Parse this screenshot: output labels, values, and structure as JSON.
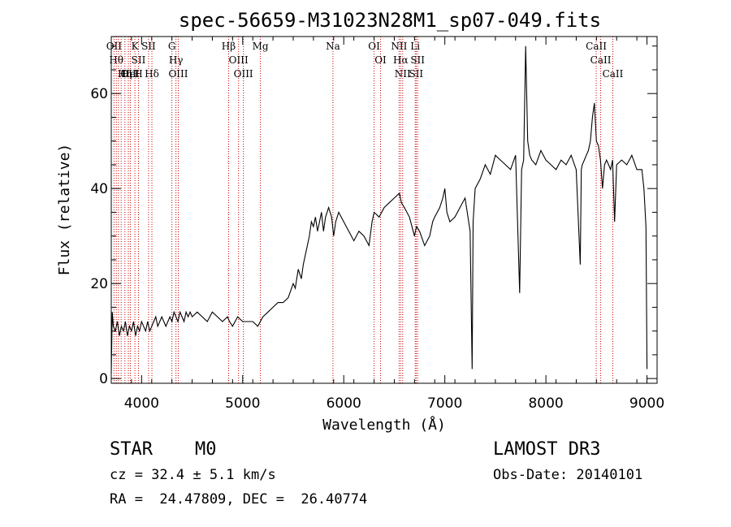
{
  "chart_data": {
    "type": "line",
    "title": "spec-56659-M31023N28M1_sp07-049.fits",
    "xlabel": "Wavelength (Å)",
    "ylabel": "Flux (relative)",
    "xlim": [
      3700,
      9100
    ],
    "ylim": [
      -1,
      72
    ],
    "xticks": [
      4000,
      5000,
      6000,
      7000,
      8000,
      9000
    ],
    "yticks": [
      0,
      20,
      40,
      60
    ],
    "series": [
      {
        "name": "flux",
        "x": [
          3700,
          3710,
          3720,
          3740,
          3760,
          3780,
          3800,
          3820,
          3840,
          3860,
          3880,
          3900,
          3920,
          3940,
          3960,
          3980,
          4000,
          4020,
          4040,
          4060,
          4080,
          4100,
          4120,
          4140,
          4160,
          4180,
          4200,
          4220,
          4240,
          4260,
          4280,
          4300,
          4320,
          4340,
          4360,
          4380,
          4400,
          4420,
          4440,
          4460,
          4480,
          4500,
          4550,
          4600,
          4650,
          4700,
          4750,
          4800,
          4850,
          4870,
          4900,
          4950,
          5000,
          5050,
          5100,
          5150,
          5200,
          5250,
          5300,
          5350,
          5400,
          5450,
          5500,
          5520,
          5550,
          5580,
          5600,
          5620,
          5640,
          5660,
          5680,
          5700,
          5720,
          5740,
          5760,
          5780,
          5800,
          5820,
          5850,
          5880,
          5900,
          5920,
          5950,
          6000,
          6050,
          6100,
          6150,
          6200,
          6250,
          6280,
          6300,
          6350,
          6400,
          6450,
          6500,
          6550,
          6570,
          6600,
          6650,
          6700,
          6720,
          6750,
          6800,
          6850,
          6880,
          6900,
          6950,
          6980,
          7000,
          7020,
          7050,
          7100,
          7150,
          7200,
          7250,
          7270,
          7280,
          7300,
          7350,
          7400,
          7450,
          7500,
          7550,
          7600,
          7650,
          7700,
          7740,
          7760,
          7780,
          7800,
          7820,
          7840,
          7860,
          7900,
          7950,
          8000,
          8050,
          8100,
          8150,
          8200,
          8250,
          8300,
          8340,
          8350,
          8360,
          8380,
          8400,
          8420,
          8440,
          8460,
          8480,
          8500,
          8520,
          8540,
          8560,
          8580,
          8600,
          8620,
          8640,
          8660,
          8680,
          8700,
          8750,
          8800,
          8850,
          8900,
          8950,
          8970,
          8990,
          9000
        ],
        "values": [
          1,
          14,
          11,
          10,
          12,
          9,
          11,
          10,
          12,
          9,
          11,
          10,
          12,
          9,
          11,
          10,
          12,
          11,
          10,
          12,
          10,
          11,
          12,
          13,
          11,
          12,
          13,
          12,
          11,
          12,
          13,
          12,
          14,
          13,
          12,
          14,
          13,
          12,
          14,
          13,
          14,
          13,
          14,
          13,
          12,
          14,
          13,
          12,
          13,
          12,
          11,
          13,
          12,
          12,
          12,
          11,
          13,
          14,
          15,
          16,
          16,
          17,
          20,
          19,
          23,
          21,
          24,
          26,
          28,
          30,
          33,
          32,
          34,
          31,
          33,
          35,
          31,
          34,
          36,
          34,
          30,
          33,
          35,
          33,
          31,
          29,
          31,
          30,
          28,
          33,
          35,
          34,
          36,
          37,
          38,
          39,
          37,
          36,
          34,
          30,
          32,
          31,
          28,
          30,
          33,
          34,
          36,
          38,
          40,
          35,
          33,
          34,
          36,
          38,
          31,
          2,
          33,
          40,
          42,
          45,
          43,
          47,
          46,
          45,
          44,
          47,
          18,
          44,
          46,
          70,
          50,
          47,
          46,
          45,
          48,
          46,
          45,
          44,
          46,
          45,
          47,
          44,
          24,
          44,
          45,
          46,
          47,
          48,
          50,
          55,
          58,
          50,
          49,
          46,
          40,
          45,
          46,
          45,
          44,
          46,
          33,
          45,
          46,
          45,
          47,
          44,
          44,
          40,
          32,
          2
        ]
      }
    ],
    "lines": [
      {
        "wl": 3727,
        "labels": [
          "OII"
        ]
      },
      {
        "wl": 3750,
        "labels": [
          "Hθ"
        ]
      },
      {
        "wl": 3771,
        "labels": [
          ""
        ]
      },
      {
        "wl": 3798,
        "labels": [
          ""
        ]
      },
      {
        "wl": 3835,
        "labels": [
          "Hη"
        ]
      },
      {
        "wl": 3869,
        "labels": [
          "OII"
        ]
      },
      {
        "wl": 3889,
        "labels": [
          "HeI"
        ]
      },
      {
        "wl": 3934,
        "labels": [
          "K"
        ]
      },
      {
        "wl": 3969,
        "labels": [
          "SII",
          "H"
        ]
      },
      {
        "wl": 4069,
        "labels": [
          "SII"
        ]
      },
      {
        "wl": 4102,
        "labels": [
          "Hδ"
        ]
      },
      {
        "wl": 4300,
        "labels": [
          "G"
        ]
      },
      {
        "wl": 4340,
        "labels": [
          "Hγ"
        ]
      },
      {
        "wl": 4363,
        "labels": [
          "OIII"
        ]
      },
      {
        "wl": 4861,
        "labels": [
          "Hβ"
        ]
      },
      {
        "wl": 4959,
        "labels": [
          "OIII"
        ]
      },
      {
        "wl": 5007,
        "labels": [
          "OIII"
        ]
      },
      {
        "wl": 5175,
        "labels": [
          "Mg"
        ]
      },
      {
        "wl": 5893,
        "labels": [
          "Na"
        ]
      },
      {
        "wl": 6300,
        "labels": [
          "OI"
        ]
      },
      {
        "wl": 6364,
        "labels": [
          "OI"
        ]
      },
      {
        "wl": 6548,
        "labels": [
          "NII"
        ]
      },
      {
        "wl": 6563,
        "labels": [
          "Hα"
        ]
      },
      {
        "wl": 6583,
        "labels": [
          "NII"
        ]
      },
      {
        "wl": 6707,
        "labels": [
          "Li"
        ]
      },
      {
        "wl": 6716,
        "labels": [
          "SII"
        ]
      },
      {
        "wl": 6731,
        "labels": [
          "SII"
        ]
      },
      {
        "wl": 8498,
        "labels": [
          "CaII"
        ]
      },
      {
        "wl": 8542,
        "labels": [
          "CaII"
        ]
      },
      {
        "wl": 8662,
        "labels": [
          "CaII"
        ]
      }
    ],
    "line_color": "#cc0000"
  },
  "info": {
    "class": "STAR",
    "subclass": "M0",
    "survey": "LAMOST DR3",
    "cz": "cz = 32.4 ± 5.1 km/s",
    "obs_date": "Obs-Date: 20140101",
    "coords": "RA =  24.47809, DEC =  26.40774"
  }
}
